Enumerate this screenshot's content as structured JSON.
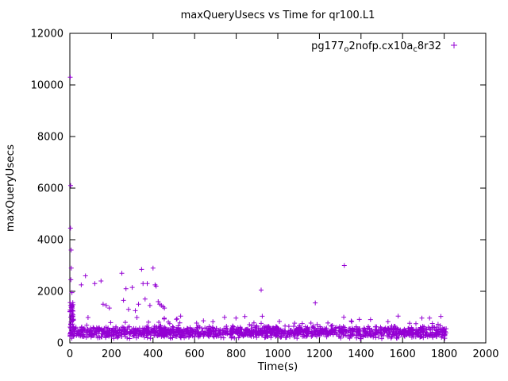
{
  "window": {
    "background": "#ffffff"
  },
  "chart_data": {
    "type": "scatter",
    "title": "maxQueryUsecs vs Time for qr100.L1",
    "xlabel": "Time(s)",
    "ylabel": "maxQueryUsecs",
    "xlim": [
      0,
      2000
    ],
    "ylim": [
      0,
      12000
    ],
    "xticks": [
      0,
      200,
      400,
      600,
      800,
      1000,
      1200,
      1400,
      1600,
      1800,
      2000
    ],
    "yticks": [
      0,
      2000,
      4000,
      6000,
      8000,
      10000,
      12000
    ],
    "grid": false,
    "legend_position": "top-right-inside",
    "axis_color": "#000000",
    "series": [
      {
        "name": "pg177_o2nofp.cx10a_c8r32",
        "label_parts": [
          {
            "t": "pg177",
            "sub": false
          },
          {
            "t": "o",
            "sub": true
          },
          {
            "t": "2nofp.cx10a",
            "sub": false
          },
          {
            "t": "c",
            "sub": true
          },
          {
            "t": "8r32",
            "sub": false
          }
        ],
        "color": "#9400D3",
        "marker": "plus",
        "seed": 42,
        "outliers": [
          [
            2,
            10300
          ],
          [
            4,
            6100
          ],
          [
            3,
            4450
          ],
          [
            7,
            2900
          ],
          [
            5,
            2450
          ],
          [
            10,
            1950
          ],
          [
            3,
            1450
          ],
          [
            12,
            1350
          ],
          [
            6,
            3600
          ],
          [
            55,
            2250
          ],
          [
            75,
            2600
          ],
          [
            120,
            2300
          ],
          [
            150,
            2400
          ],
          [
            160,
            1500
          ],
          [
            175,
            1450
          ],
          [
            190,
            1350
          ],
          [
            250,
            2700
          ],
          [
            258,
            1650
          ],
          [
            270,
            2100
          ],
          [
            282,
            1300
          ],
          [
            300,
            2150
          ],
          [
            315,
            1250
          ],
          [
            330,
            1500
          ],
          [
            345,
            2850
          ],
          [
            352,
            2300
          ],
          [
            362,
            1700
          ],
          [
            372,
            2300
          ],
          [
            385,
            1450
          ],
          [
            400,
            2900
          ],
          [
            410,
            2250
          ],
          [
            415,
            2200
          ],
          [
            425,
            1600
          ],
          [
            432,
            1500
          ],
          [
            440,
            1450
          ],
          [
            448,
            1400
          ],
          [
            455,
            1350
          ],
          [
            920,
            2050
          ],
          [
            1180,
            1550
          ],
          [
            1320,
            3000
          ]
        ],
        "noise_bands": [
          {
            "x_min": 0,
            "x_max": 1810,
            "y_min": 150,
            "y_max": 680,
            "count": 1400,
            "bias": "low"
          },
          {
            "x_min": 0,
            "x_max": 1810,
            "y_min": 600,
            "y_max": 1050,
            "count": 55
          },
          {
            "x_min": 0,
            "x_max": 18,
            "y_min": 250,
            "y_max": 1600,
            "count": 45
          }
        ]
      }
    ]
  }
}
